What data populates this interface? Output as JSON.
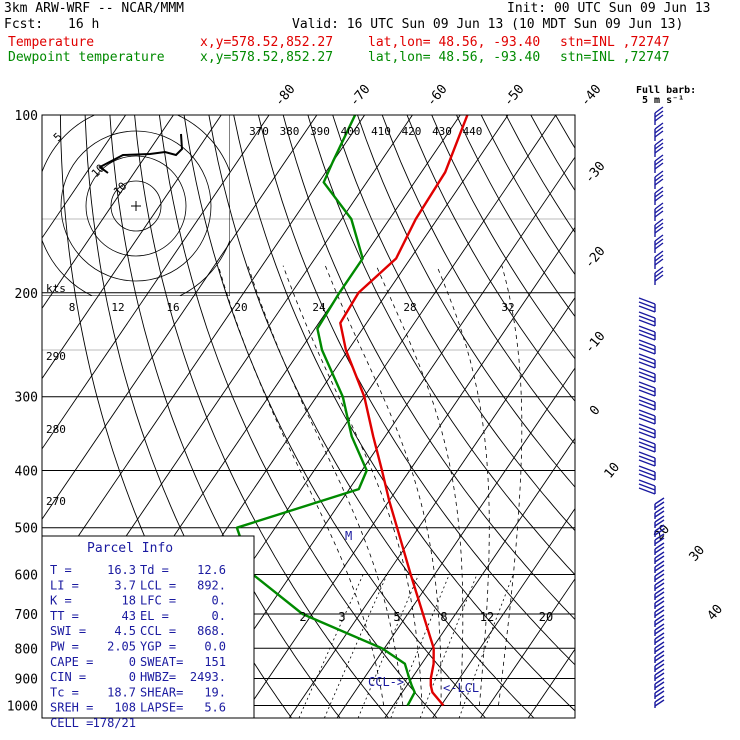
{
  "header": {
    "model": "3km ARW-WRF -- NCAR/MMM",
    "init": "Init: 00 UTC Sun 09 Jun 13",
    "fcst_label": "Fcst:",
    "fcst_value": "16 h",
    "valid": "Valid: 16 UTC Sun 09 Jun 13 (10 MDT Sun 09 Jun 13)",
    "temp_label": "Temperature",
    "dew_label": "Dewpoint temperature",
    "xy": "x,y=578.52,852.27",
    "latlon": "lat,lon= 48.56, -93.40",
    "stn": "stn=INL ,72747"
  },
  "barb_legend": {
    "line1": "Full barb:",
    "line2": "5 m s⁻¹"
  },
  "hodograph": {
    "units": "kts",
    "ring_labels": [
      "5",
      "10",
      "10"
    ]
  },
  "parcel": {
    "title": "Parcel Info",
    "rows": [
      [
        "T  =",
        "16.3",
        "Td =",
        "12.6"
      ],
      [
        "LI =",
        "3.7",
        "LCL =",
        "892."
      ],
      [
        "K  =",
        "18",
        "LFC =",
        "0."
      ],
      [
        "TT =",
        "43",
        "EL  =",
        "0."
      ],
      [
        "SWI =",
        "4.5",
        "CCL =",
        "868."
      ],
      [
        "PW =",
        "2.05",
        "YGP =",
        "0.0"
      ],
      [
        "CAPE =",
        "0",
        "SWEAT=",
        "151"
      ],
      [
        "CIN =",
        "0",
        "HWBZ=",
        "2493."
      ],
      [
        "Tc =",
        "18.7",
        "SHEAR=",
        "19."
      ],
      [
        "SREH =",
        "108",
        "LAPSE=",
        "5.6"
      ],
      [
        "CELL =",
        "178/21",
        "",
        ""
      ]
    ]
  },
  "markers": {
    "ccl": "CCL->",
    "lcl": "<-LCL",
    "m": "M"
  },
  "chart_data": {
    "type": "skew-t",
    "pressure_ticks": [
      "100",
      "200",
      "300",
      "400",
      "500",
      "600",
      "700",
      "800",
      "900",
      "1000"
    ],
    "isotherm_labels": [
      "-80",
      "-70",
      "-60",
      "-50",
      "-40",
      "-30",
      "-20",
      "-10",
      "0",
      "10",
      "20",
      "30",
      "40"
    ],
    "theta_labels": [
      "370",
      "380",
      "390",
      "400",
      "410",
      "420",
      "430",
      "440"
    ],
    "theta_labels_left": [
      "290",
      "280",
      "270"
    ],
    "mixing_labels": [
      "2",
      "3",
      "5",
      "8",
      "12",
      "20"
    ],
    "hodo_ticks": [
      "8",
      "12",
      "16",
      "20",
      "24",
      "28",
      "32"
    ],
    "temperature": [
      [
        1000,
        20.5
      ],
      [
        950,
        16.3
      ],
      [
        925,
        15.0
      ],
      [
        900,
        14.0
      ],
      [
        850,
        12.5
      ],
      [
        800,
        10.3
      ],
      [
        700,
        3.2
      ],
      [
        600,
        -5.0
      ],
      [
        500,
        -14.5
      ],
      [
        450,
        -20.0
      ],
      [
        400,
        -25.8
      ],
      [
        350,
        -32.5
      ],
      [
        300,
        -40.0
      ],
      [
        250,
        -50.5
      ],
      [
        225,
        -55.5
      ],
      [
        200,
        -56.0
      ],
      [
        175,
        -53.0
      ],
      [
        150,
        -54.5
      ],
      [
        125,
        -55.0
      ],
      [
        100,
        -58.5
      ]
    ],
    "dewpoint": [
      [
        1000,
        13.0
      ],
      [
        950,
        12.6
      ],
      [
        925,
        11.0
      ],
      [
        900,
        9.5
      ],
      [
        850,
        6.5
      ],
      [
        800,
        -0.5
      ],
      [
        700,
        -22.0
      ],
      [
        600,
        -38.0
      ],
      [
        500,
        -48.0
      ],
      [
        430,
        -28.0
      ],
      [
        400,
        -29.0
      ],
      [
        350,
        -37.0
      ],
      [
        300,
        -44.5
      ],
      [
        250,
        -55.5
      ],
      [
        230,
        -59.5
      ],
      [
        200,
        -60.0
      ],
      [
        175,
        -60.0
      ],
      [
        150,
        -68.0
      ],
      [
        130,
        -79.0
      ],
      [
        120,
        -80.0
      ],
      [
        100,
        -82.0
      ]
    ],
    "colors": {
      "temperature": "#e00000",
      "dewpoint": "#008a00",
      "barbs": "#1a1aa0",
      "grid": "#000000"
    }
  }
}
